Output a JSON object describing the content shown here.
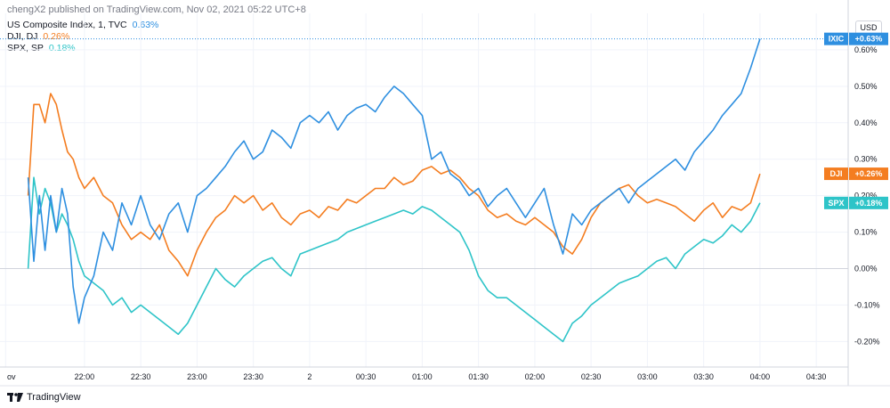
{
  "header": {
    "published": "chengX2 published on TradingView.com, Nov 02, 2021 05:22 UTC+8"
  },
  "currency_label": "USD",
  "footer": {
    "brand": "TradingView"
  },
  "colors": {
    "ixic": "#2e8fe0",
    "dji": "#f47d20",
    "spx": "#2ec4c8",
    "grid": "#f0f3fa",
    "zero": "#d1d4dc"
  },
  "chart_data": {
    "type": "line",
    "legend": [
      {
        "label": "US Composite Index, 1, TVC",
        "value": "0.63%"
      },
      {
        "label": "DJI, DJ",
        "value": "0.26%"
      },
      {
        "label": "SPX, SP",
        "value": "0.18%"
      }
    ],
    "ylim": [
      -0.27,
      0.7
    ],
    "y_ticks": [
      "0.60%",
      "0.50%",
      "0.40%",
      "0.30%",
      "0.20%",
      "0.10%",
      "0.00%",
      "-0.10%",
      "-0.20%"
    ],
    "y_tick_values": [
      0.6,
      0.5,
      0.4,
      0.3,
      0.2,
      0.1,
      0.0,
      -0.1,
      -0.2
    ],
    "x_ticks": [
      "ov",
      "22:00",
      "22:30",
      "23:00",
      "23:30",
      "2",
      "00:30",
      "01:00",
      "01:30",
      "02:00",
      "02:30",
      "03:00",
      "03:30",
      "04:00",
      "04:30"
    ],
    "x_tick_minutes": [
      -12,
      30,
      60,
      90,
      120,
      150,
      180,
      210,
      240,
      270,
      300,
      330,
      360,
      390,
      420
    ],
    "xlim_minutes": [
      -15,
      437
    ],
    "series": [
      {
        "name": "IXIC",
        "badge": "+0.63%",
        "x": [
          0,
          3,
          6,
          9,
          12,
          15,
          18,
          21,
          24,
          27,
          30,
          35,
          40,
          45,
          50,
          55,
          60,
          65,
          70,
          75,
          80,
          85,
          90,
          95,
          100,
          105,
          110,
          115,
          120,
          125,
          130,
          135,
          140,
          145,
          150,
          155,
          160,
          165,
          170,
          175,
          180,
          185,
          190,
          195,
          200,
          205,
          210,
          215,
          220,
          225,
          230,
          235,
          240,
          245,
          250,
          255,
          260,
          265,
          270,
          275,
          280,
          285,
          290,
          295,
          300,
          305,
          310,
          315,
          320,
          325,
          330,
          335,
          340,
          345,
          350,
          355,
          360,
          365,
          370,
          375,
          380,
          385,
          390
        ],
        "values": [
          0.25,
          0.02,
          0.2,
          0.05,
          0.2,
          0.1,
          0.22,
          0.15,
          -0.05,
          -0.15,
          -0.08,
          -0.02,
          0.1,
          0.05,
          0.18,
          0.12,
          0.2,
          0.12,
          0.08,
          0.15,
          0.18,
          0.1,
          0.2,
          0.22,
          0.25,
          0.28,
          0.32,
          0.35,
          0.3,
          0.32,
          0.38,
          0.36,
          0.33,
          0.4,
          0.42,
          0.4,
          0.43,
          0.38,
          0.42,
          0.44,
          0.45,
          0.43,
          0.47,
          0.5,
          0.48,
          0.45,
          0.42,
          0.3,
          0.32,
          0.26,
          0.24,
          0.2,
          0.22,
          0.17,
          0.2,
          0.22,
          0.18,
          0.14,
          0.18,
          0.22,
          0.12,
          0.04,
          0.15,
          0.12,
          0.16,
          0.18,
          0.2,
          0.22,
          0.18,
          0.22,
          0.24,
          0.26,
          0.28,
          0.3,
          0.27,
          0.32,
          0.35,
          0.38,
          0.42,
          0.45,
          0.48,
          0.55,
          0.63
        ]
      },
      {
        "name": "DJI",
        "badge": "+0.26%",
        "x": [
          0,
          3,
          6,
          9,
          12,
          15,
          18,
          21,
          24,
          27,
          30,
          35,
          40,
          45,
          50,
          55,
          60,
          65,
          70,
          75,
          80,
          85,
          90,
          95,
          100,
          105,
          110,
          115,
          120,
          125,
          130,
          135,
          140,
          145,
          150,
          155,
          160,
          165,
          170,
          175,
          180,
          185,
          190,
          195,
          200,
          205,
          210,
          215,
          220,
          225,
          230,
          235,
          240,
          245,
          250,
          255,
          260,
          265,
          270,
          275,
          280,
          285,
          290,
          295,
          300,
          305,
          310,
          315,
          320,
          325,
          330,
          335,
          340,
          345,
          350,
          355,
          360,
          365,
          370,
          375,
          380,
          385,
          390
        ],
        "values": [
          0.2,
          0.45,
          0.45,
          0.4,
          0.48,
          0.45,
          0.38,
          0.32,
          0.3,
          0.25,
          0.22,
          0.25,
          0.2,
          0.18,
          0.12,
          0.08,
          0.1,
          0.08,
          0.12,
          0.05,
          0.02,
          -0.02,
          0.05,
          0.1,
          0.14,
          0.16,
          0.2,
          0.18,
          0.2,
          0.16,
          0.18,
          0.14,
          0.12,
          0.15,
          0.16,
          0.14,
          0.17,
          0.16,
          0.19,
          0.18,
          0.2,
          0.22,
          0.22,
          0.25,
          0.23,
          0.24,
          0.27,
          0.28,
          0.26,
          0.27,
          0.25,
          0.22,
          0.2,
          0.16,
          0.14,
          0.15,
          0.13,
          0.12,
          0.14,
          0.12,
          0.1,
          0.06,
          0.04,
          0.08,
          0.14,
          0.18,
          0.2,
          0.22,
          0.23,
          0.2,
          0.18,
          0.19,
          0.18,
          0.17,
          0.15,
          0.13,
          0.16,
          0.18,
          0.14,
          0.17,
          0.16,
          0.18,
          0.26
        ]
      },
      {
        "name": "SPX",
        "badge": "+0.18%",
        "x": [
          0,
          3,
          6,
          9,
          12,
          15,
          18,
          21,
          24,
          27,
          30,
          35,
          40,
          45,
          50,
          55,
          60,
          65,
          70,
          75,
          80,
          85,
          90,
          95,
          100,
          105,
          110,
          115,
          120,
          125,
          130,
          135,
          140,
          145,
          150,
          155,
          160,
          165,
          170,
          175,
          180,
          185,
          190,
          195,
          200,
          205,
          210,
          215,
          220,
          225,
          230,
          235,
          240,
          245,
          250,
          255,
          260,
          265,
          270,
          275,
          280,
          285,
          290,
          295,
          300,
          305,
          310,
          315,
          320,
          325,
          330,
          335,
          340,
          345,
          350,
          355,
          360,
          365,
          370,
          375,
          380,
          385,
          390
        ],
        "values": [
          0.0,
          0.25,
          0.15,
          0.22,
          0.18,
          0.1,
          0.15,
          0.12,
          0.08,
          0.02,
          -0.02,
          -0.04,
          -0.06,
          -0.1,
          -0.08,
          -0.12,
          -0.1,
          -0.12,
          -0.14,
          -0.16,
          -0.18,
          -0.15,
          -0.1,
          -0.05,
          0.0,
          -0.03,
          -0.05,
          -0.02,
          0.0,
          0.02,
          0.03,
          0.0,
          -0.02,
          0.04,
          0.05,
          0.06,
          0.07,
          0.08,
          0.1,
          0.11,
          0.12,
          0.13,
          0.14,
          0.15,
          0.16,
          0.15,
          0.17,
          0.16,
          0.14,
          0.12,
          0.1,
          0.05,
          -0.02,
          -0.06,
          -0.08,
          -0.08,
          -0.1,
          -0.12,
          -0.14,
          -0.16,
          -0.18,
          -0.2,
          -0.15,
          -0.13,
          -0.1,
          -0.08,
          -0.06,
          -0.04,
          -0.03,
          -0.02,
          0.0,
          0.02,
          0.03,
          0.0,
          0.04,
          0.06,
          0.08,
          0.07,
          0.09,
          0.12,
          0.1,
          0.13,
          0.18
        ]
      }
    ]
  }
}
